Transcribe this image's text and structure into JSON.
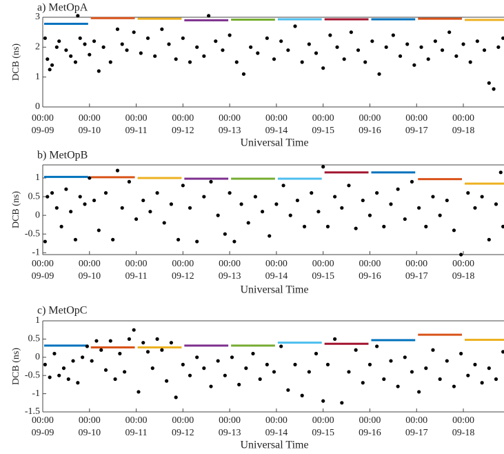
{
  "chart_data": [
    {
      "type": "scatter",
      "title": "a) MetOpA",
      "ylabel": "DCB (ns)",
      "xlabel": "Universal Time",
      "xlim": [
        0,
        9.87
      ],
      "ylim": [
        0,
        3
      ],
      "yticks": [
        0,
        1,
        2,
        3
      ],
      "xticks": [
        {
          "value": 0,
          "label": "00:00 09-09"
        },
        {
          "value": 1,
          "label": "00:00 09-10"
        },
        {
          "value": 2,
          "label": "00:00 09-11"
        },
        {
          "value": 3,
          "label": "00:00 09-12"
        },
        {
          "value": 4,
          "label": "00:00 09-13"
        },
        {
          "value": 5,
          "label": "00:00 09-14"
        },
        {
          "value": 6,
          "label": "00:00 09-15"
        },
        {
          "value": 7,
          "label": "00:00 09-16"
        },
        {
          "value": 8,
          "label": "00:00 09-17"
        },
        {
          "value": 9,
          "label": "00:00 09-18"
        }
      ],
      "color": "#000000",
      "x": [
        0.05,
        0.1,
        0.15,
        0.2,
        0.3,
        0.35,
        0.5,
        0.6,
        0.7,
        0.75,
        0.8,
        0.9,
        1.0,
        1.1,
        1.2,
        1.3,
        1.45,
        1.6,
        1.7,
        1.8,
        1.95,
        2.1,
        2.25,
        2.4,
        2.55,
        2.7,
        2.85,
        3.0,
        3.15,
        3.3,
        3.45,
        3.55,
        3.7,
        3.85,
        4.0,
        4.15,
        4.3,
        4.45,
        4.6,
        4.8,
        4.95,
        5.1,
        5.25,
        5.4,
        5.55,
        5.7,
        5.85,
        6.0,
        6.15,
        6.3,
        6.45,
        6.6,
        6.75,
        6.9,
        7.05,
        7.2,
        7.35,
        7.5,
        7.65,
        7.8,
        7.95,
        8.1,
        8.25,
        8.4,
        8.55,
        8.7,
        8.85,
        9.0,
        9.15,
        9.3,
        9.45,
        9.55,
        9.65,
        9.75,
        9.85
      ],
      "values": [
        2.3,
        1.6,
        1.25,
        1.4,
        2.0,
        2.2,
        1.9,
        1.7,
        1.5,
        3.05,
        2.3,
        2.1,
        1.75,
        2.2,
        1.2,
        2.0,
        1.5,
        2.6,
        2.1,
        1.9,
        2.5,
        1.8,
        2.3,
        1.7,
        2.6,
        2.1,
        1.6,
        2.3,
        1.5,
        2.0,
        1.7,
        3.05,
        2.2,
        1.9,
        2.4,
        1.5,
        1.1,
        2.0,
        1.8,
        2.3,
        1.6,
        2.2,
        1.9,
        2.7,
        1.5,
        2.1,
        1.8,
        1.3,
        2.4,
        2.0,
        1.6,
        2.5,
        1.9,
        1.5,
        2.2,
        1.1,
        2.0,
        2.4,
        1.7,
        2.1,
        1.4,
        2.0,
        1.6,
        2.2,
        1.9,
        2.5,
        1.7,
        2.1,
        1.5,
        2.2,
        1.9,
        0.8,
        0.6,
        2.0,
        2.3
      ],
      "segments": [
        {
          "value": 2.78,
          "color": "#0072BD"
        },
        {
          "value": 2.97,
          "color": "#D95319"
        },
        {
          "value": 2.95,
          "color": "#EDB120"
        },
        {
          "value": 2.9,
          "color": "#7E2F8E"
        },
        {
          "value": 2.92,
          "color": "#77AC30"
        },
        {
          "value": 2.93,
          "color": "#4DBEEE"
        },
        {
          "value": 2.93,
          "color": "#A2142F"
        },
        {
          "value": 2.93,
          "color": "#0072BD"
        },
        {
          "value": 2.95,
          "color": "#D95319"
        },
        {
          "value": 2.91,
          "color": "#EDB120"
        }
      ]
    },
    {
      "type": "scatter",
      "title": "b) MetOpB",
      "ylabel": "DCB (ns)",
      "xlabel": "Universal Time",
      "xlim": [
        0,
        9.87
      ],
      "ylim": [
        -1.05,
        1.35
      ],
      "yticks": [
        -1,
        -0.5,
        0,
        0.5,
        1
      ],
      "xticks": [
        {
          "value": 0,
          "label": "00:00 09-09"
        },
        {
          "value": 1,
          "label": "00:00 09-10"
        },
        {
          "value": 2,
          "label": "00:00 09-11"
        },
        {
          "value": 3,
          "label": "00:00 09-12"
        },
        {
          "value": 4,
          "label": "00:00 09-13"
        },
        {
          "value": 5,
          "label": "00:00 09-14"
        },
        {
          "value": 6,
          "label": "00:00 09-15"
        },
        {
          "value": 7,
          "label": "00:00 09-16"
        },
        {
          "value": 8,
          "label": "00:00 09-17"
        },
        {
          "value": 9,
          "label": "00:00 09-18"
        }
      ],
      "color": "#000000",
      "x": [
        0.05,
        0.1,
        0.2,
        0.3,
        0.4,
        0.5,
        0.6,
        0.7,
        0.8,
        0.9,
        1.0,
        1.1,
        1.2,
        1.35,
        1.5,
        1.6,
        1.7,
        1.85,
        2.0,
        2.15,
        2.3,
        2.45,
        2.6,
        2.75,
        2.9,
        3.0,
        3.15,
        3.3,
        3.45,
        3.6,
        3.75,
        3.9,
        4.0,
        4.1,
        4.25,
        4.4,
        4.55,
        4.7,
        4.85,
        5.0,
        5.15,
        5.3,
        5.45,
        5.6,
        5.75,
        5.9,
        6.0,
        6.1,
        6.25,
        6.4,
        6.55,
        6.7,
        6.85,
        7.0,
        7.15,
        7.3,
        7.45,
        7.6,
        7.75,
        7.9,
        8.05,
        8.2,
        8.35,
        8.5,
        8.65,
        8.8,
        8.95,
        9.1,
        9.25,
        9.4,
        9.55,
        9.7,
        9.8,
        9.85
      ],
      "values": [
        -0.7,
        0.5,
        0.6,
        0.2,
        -0.3,
        0.7,
        0.1,
        -0.65,
        0.5,
        0.3,
        1.0,
        0.4,
        -0.4,
        0.6,
        -0.65,
        1.2,
        0.2,
        0.9,
        -0.1,
        0.4,
        0.1,
        0.6,
        -0.2,
        0.3,
        -0.65,
        0.8,
        0.2,
        -0.7,
        0.5,
        0.9,
        0.0,
        -0.5,
        0.6,
        -0.7,
        0.3,
        -0.2,
        0.5,
        0.1,
        -0.55,
        0.3,
        0.8,
        0.0,
        0.4,
        -0.3,
        0.6,
        0.1,
        1.3,
        -0.3,
        0.5,
        0.2,
        0.8,
        -0.35,
        0.4,
        0.0,
        0.6,
        -0.3,
        0.3,
        0.7,
        -0.1,
        0.9,
        0.2,
        -0.3,
        0.5,
        0.0,
        0.4,
        -0.4,
        -1.05,
        0.6,
        0.2,
        0.5,
        -0.65,
        0.3,
        1.15,
        -0.3
      ],
      "segments": [
        {
          "value": 1.03,
          "color": "#0072BD"
        },
        {
          "value": 1.02,
          "color": "#D95319"
        },
        {
          "value": 1.0,
          "color": "#EDB120"
        },
        {
          "value": 0.98,
          "color": "#7E2F8E"
        },
        {
          "value": 0.98,
          "color": "#77AC30"
        },
        {
          "value": 0.98,
          "color": "#4DBEEE"
        },
        {
          "value": 1.15,
          "color": "#A2142F"
        },
        {
          "value": 1.15,
          "color": "#0072BD"
        },
        {
          "value": 0.97,
          "color": "#D95319"
        },
        {
          "value": 0.85,
          "color": "#EDB120"
        }
      ]
    },
    {
      "type": "scatter",
      "title": "c) MetOpC",
      "ylabel": "DCB (ns)",
      "xlabel": "Universal Time",
      "xlim": [
        0,
        9.87
      ],
      "ylim": [
        -1.5,
        1
      ],
      "yticks": [
        -1.5,
        -1,
        -0.5,
        0,
        0.5,
        1
      ],
      "xticks": [
        {
          "value": 0,
          "label": "00:00 09-09"
        },
        {
          "value": 1,
          "label": "00:00 09-10"
        },
        {
          "value": 2,
          "label": "00:00 09-11"
        },
        {
          "value": 3,
          "label": "00:00 09-12"
        },
        {
          "value": 4,
          "label": "00:00 09-13"
        },
        {
          "value": 5,
          "label": "00:00 09-14"
        },
        {
          "value": 6,
          "label": "00:00 09-15"
        },
        {
          "value": 7,
          "label": "00:00 09-16"
        },
        {
          "value": 8,
          "label": "00:00 09-17"
        },
        {
          "value": 9,
          "label": "00:00 09-18"
        }
      ],
      "color": "#000000",
      "x": [
        0.05,
        0.15,
        0.25,
        0.35,
        0.45,
        0.55,
        0.65,
        0.75,
        0.85,
        0.95,
        1.05,
        1.15,
        1.25,
        1.35,
        1.45,
        1.55,
        1.65,
        1.75,
        1.85,
        1.95,
        2.05,
        2.15,
        2.25,
        2.35,
        2.45,
        2.55,
        2.65,
        2.75,
        2.85,
        3.0,
        3.15,
        3.3,
        3.45,
        3.6,
        3.75,
        3.9,
        4.05,
        4.2,
        4.35,
        4.5,
        4.65,
        4.8,
        4.95,
        5.1,
        5.25,
        5.4,
        5.55,
        5.7,
        5.85,
        6.0,
        6.1,
        6.25,
        6.4,
        6.55,
        6.7,
        6.85,
        7.0,
        7.15,
        7.3,
        7.45,
        7.6,
        7.75,
        7.9,
        8.05,
        8.2,
        8.35,
        8.5,
        8.65,
        8.8,
        8.95,
        9.1,
        9.25,
        9.4,
        9.55,
        9.7,
        9.85
      ],
      "values": [
        -0.2,
        -0.55,
        0.1,
        -0.5,
        -0.3,
        -0.6,
        -0.1,
        -0.7,
        0.0,
        0.3,
        -0.1,
        0.45,
        0.2,
        -0.35,
        0.45,
        -0.6,
        0.1,
        -0.4,
        0.5,
        0.75,
        -0.95,
        0.4,
        0.15,
        -0.3,
        0.5,
        0.2,
        -0.65,
        0.4,
        -1.1,
        -0.2,
        -0.5,
        0.0,
        -0.3,
        -0.8,
        -0.1,
        -0.5,
        0.0,
        -0.75,
        -0.3,
        0.1,
        -0.6,
        -0.2,
        -0.4,
        0.3,
        -0.9,
        -0.2,
        -1.05,
        -0.4,
        0.1,
        -1.2,
        -0.2,
        0.5,
        -1.25,
        -0.4,
        0.2,
        -0.7,
        -0.2,
        0.3,
        -0.6,
        -0.1,
        -0.8,
        0.0,
        -0.4,
        -0.95,
        -0.3,
        0.2,
        -0.6,
        -0.1,
        -0.8,
        0.1,
        -0.5,
        -0.2,
        -0.7,
        -0.3,
        -0.6,
        0.15
      ],
      "segments": [
        {
          "value": 0.32,
          "color": "#0072BD"
        },
        {
          "value": 0.27,
          "color": "#D95319"
        },
        {
          "value": 0.27,
          "color": "#EDB120"
        },
        {
          "value": 0.32,
          "color": "#7E2F8E"
        },
        {
          "value": 0.32,
          "color": "#77AC30"
        },
        {
          "value": 0.4,
          "color": "#4DBEEE"
        },
        {
          "value": 0.37,
          "color": "#A2142F"
        },
        {
          "value": 0.47,
          "color": "#0072BD"
        },
        {
          "value": 0.62,
          "color": "#D95319"
        },
        {
          "value": 0.48,
          "color": "#EDB120"
        }
      ]
    }
  ]
}
